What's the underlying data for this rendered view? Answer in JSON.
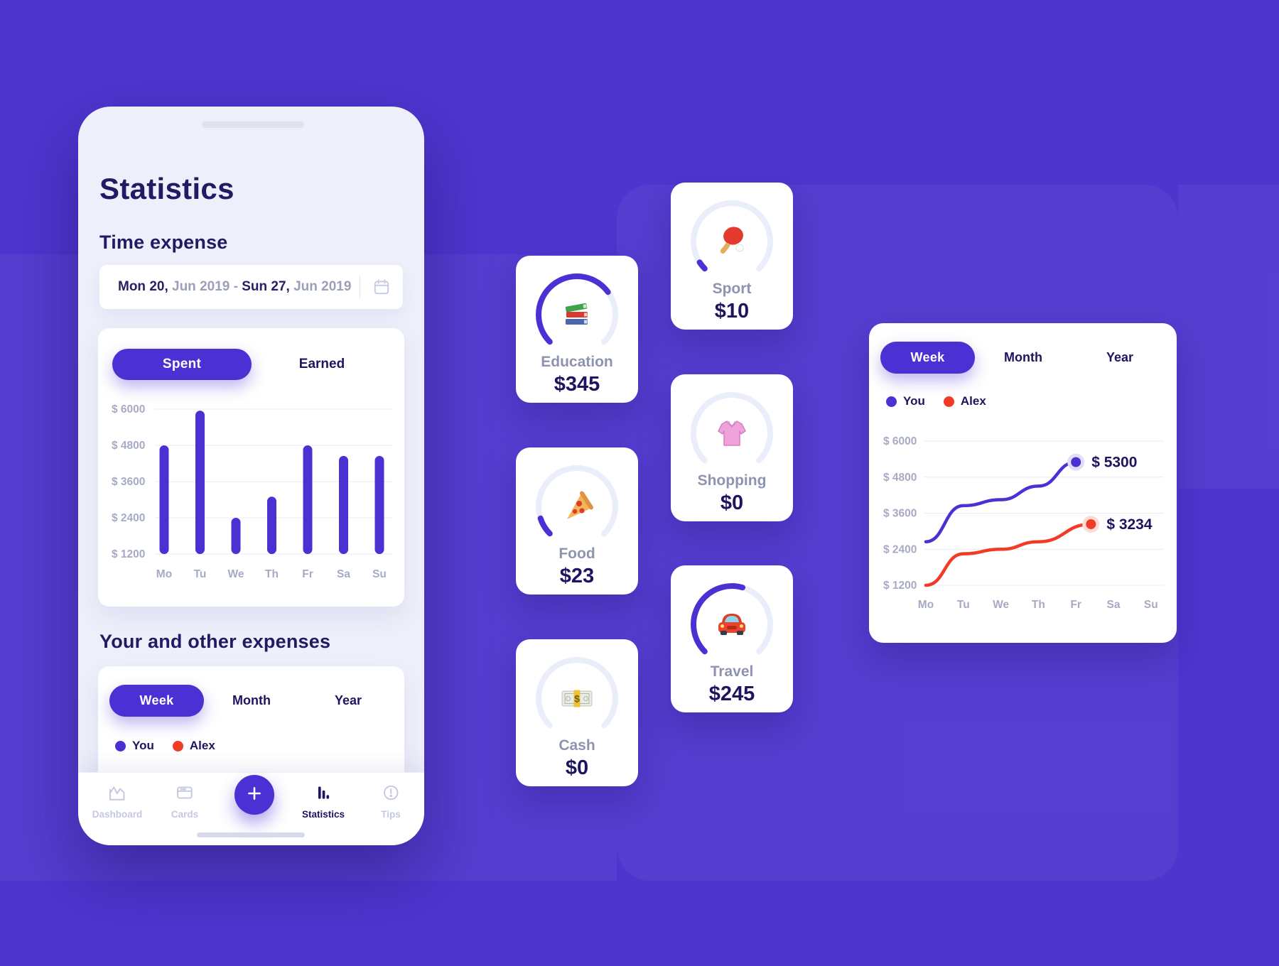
{
  "colors": {
    "background": "#4E35CE",
    "accent": "#4B31D4",
    "navy": "#1D155F",
    "red": "#F13B26",
    "phone_bg": "#EDEFFA",
    "muted_label": "#8E93AF"
  },
  "phone": {
    "title": "Statistics",
    "time_expense": {
      "heading": "Time expense",
      "date_range": {
        "start_day": "Mon 20,",
        "mid": " Jun 2019 - ",
        "end_day": "Sun 27,",
        "end_month": " Jun 2019"
      },
      "tabs": {
        "spent": "Spent",
        "earned": "Earned"
      }
    },
    "other_expenses": {
      "heading": "Your and other expenses",
      "tabs": {
        "week": "Week",
        "month": "Month",
        "year": "Year"
      },
      "legend": [
        {
          "label": "You",
          "color": "#4B31D4"
        },
        {
          "label": "Alex",
          "color": "#F13B26"
        }
      ]
    },
    "nav": {
      "dashboard": "Dashboard",
      "cards": "Cards",
      "plus": "+",
      "statistics": "Statistics",
      "tips": "Tips"
    }
  },
  "category_cards": [
    {
      "label": "Education",
      "value": "$345",
      "icon": "books-icon",
      "progress": 0.7
    },
    {
      "label": "Food",
      "value": "$23",
      "icon": "pizza-icon",
      "progress": 0.1
    },
    {
      "label": "Cash",
      "value": "$0",
      "icon": "money-icon",
      "progress": 0
    },
    {
      "label": "Sport",
      "value": "$10",
      "icon": "ping-pong-icon",
      "progress": 0.045
    },
    {
      "label": "Shopping",
      "value": "$0",
      "icon": "blouse-icon",
      "progress": 0
    },
    {
      "label": "Travel",
      "value": "$245",
      "icon": "car-icon",
      "progress": 0.56
    }
  ],
  "right_chart": {
    "tabs": {
      "week": "Week",
      "month": "Month",
      "year": "Year"
    },
    "legend": [
      {
        "label": "You",
        "color": "#4B31D4"
      },
      {
        "label": "Alex",
        "color": "#F13B26"
      }
    ]
  },
  "chart_data": [
    {
      "type": "bar",
      "title": "Time expense (Spent)",
      "categories": [
        "Mo",
        "Tu",
        "We",
        "Th",
        "Fr",
        "Sa",
        "Su"
      ],
      "values": [
        4800,
        5950,
        2400,
        3100,
        4800,
        4450,
        4450
      ],
      "tick_labels": [
        "$ 6000",
        "$ 4800",
        "$ 3600",
        "$ 2400",
        "$ 1200"
      ],
      "ylim": [
        1200,
        6000
      ],
      "bar_color": "#4B31D4",
      "xlabel": "",
      "ylabel": "",
      "grid": true
    },
    {
      "type": "line",
      "title": "Your and other expenses (Week)",
      "categories": [
        "Mo",
        "Tu",
        "We",
        "Th",
        "Fr",
        "Sa",
        "Su"
      ],
      "tick_labels": [
        "$ 6000",
        "$ 4800",
        "$ 3600",
        "$ 2400",
        "$ 1200"
      ],
      "ylim": [
        1200,
        6000
      ],
      "grid": true,
      "legend_position": "top-left",
      "series": [
        {
          "name": "You",
          "color": "#4B31D4",
          "halo": "#E2DEF8",
          "x": [
            0,
            1,
            2,
            3,
            4
          ],
          "values": [
            2650,
            3850,
            4050,
            4500,
            5300
          ],
          "end_label": "$ 5300"
        },
        {
          "name": "Alex",
          "color": "#F13B26",
          "halo": "#FCDDD6",
          "x": [
            0,
            1,
            2,
            3,
            4.4
          ],
          "values": [
            1200,
            2250,
            2400,
            2650,
            3234
          ],
          "end_label": "$ 3234"
        }
      ]
    }
  ]
}
